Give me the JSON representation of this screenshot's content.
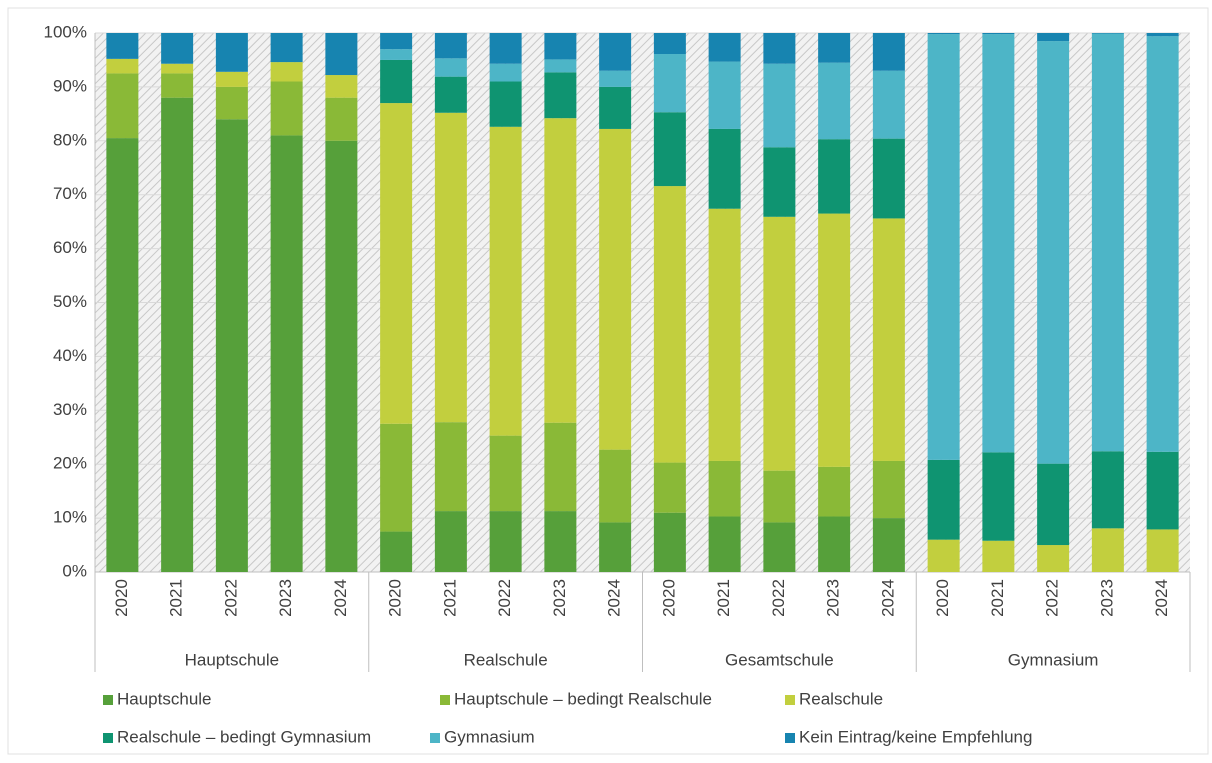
{
  "chart_data": {
    "type": "stacked_bar",
    "groups": [
      {
        "label": "Hauptschule",
        "categories": [
          "2020",
          "2021",
          "2022",
          "2023",
          "2024"
        ]
      },
      {
        "label": "Realschule",
        "categories": [
          "2020",
          "2021",
          "2022",
          "2023",
          "2024"
        ]
      },
      {
        "label": "Gesamtschule",
        "categories": [
          "2020",
          "2021",
          "2022",
          "2023",
          "2024"
        ]
      },
      {
        "label": "Gymnasium",
        "categories": [
          "2020",
          "2021",
          "2022",
          "2023",
          "2024"
        ]
      }
    ],
    "series": [
      {
        "name": "Hauptschule",
        "color": "#56a03a",
        "values": [
          80.5,
          88,
          84,
          81,
          80,
          7.5,
          11.3,
          11.3,
          11.3,
          9.2,
          11,
          10.3,
          9.2,
          10.3,
          10,
          0,
          0,
          0,
          0,
          0
        ]
      },
      {
        "name": "Hauptschule – bedingt Realschule",
        "color": "#8ab937",
        "values": [
          12,
          4.5,
          6,
          10,
          8,
          20,
          16.5,
          14,
          16.4,
          13.5,
          9.3,
          10.3,
          9.6,
          9.2,
          10.6,
          0,
          0,
          0,
          0,
          0
        ]
      },
      {
        "name": "Realschule",
        "color": "#c2cf3e",
        "values": [
          2.7,
          1.8,
          2.8,
          3.6,
          4.2,
          59.5,
          57.4,
          57.3,
          56.5,
          59.5,
          51.3,
          46.8,
          47.1,
          47,
          45,
          6,
          5.8,
          5,
          8.1,
          7.9
        ]
      },
      {
        "name": "Realschule – bedingt Gymnasium",
        "color": "#0f9471",
        "values": [
          0,
          0,
          0,
          0,
          0,
          8,
          6.7,
          8.4,
          8.5,
          7.8,
          13.7,
          14.8,
          12.9,
          13.8,
          14.8,
          14.8,
          16.4,
          15.1,
          14.3,
          14.4
        ]
      },
      {
        "name": "Gymnasium",
        "color": "#4db5c7",
        "values": [
          0,
          0,
          0,
          0,
          0,
          2,
          3.4,
          3.3,
          2.4,
          3,
          10.8,
          12.5,
          15.5,
          14.2,
          12.6,
          79,
          77.6,
          78.4,
          77.5,
          77.1
        ]
      },
      {
        "name": "Kein Eintrag/keine Empfehlung",
        "color": "#1784b0",
        "values": [
          4.8,
          5.7,
          7.2,
          5.4,
          7.8,
          3,
          4.7,
          5.7,
          4.9,
          7,
          3.9,
          5.3,
          5.7,
          5.5,
          7,
          0.2,
          0.2,
          1.5,
          0.1,
          0.6
        ]
      }
    ],
    "ylim": [
      0,
      100
    ],
    "yticks": [
      {
        "value": 0,
        "label": "0%"
      },
      {
        "value": 10,
        "label": "10%"
      },
      {
        "value": 20,
        "label": "20%"
      },
      {
        "value": 30,
        "label": "30%"
      },
      {
        "value": 40,
        "label": "40%"
      },
      {
        "value": 50,
        "label": "50%"
      },
      {
        "value": 60,
        "label": "60%"
      },
      {
        "value": 70,
        "label": "70%"
      },
      {
        "value": 80,
        "label": "80%"
      },
      {
        "value": 90,
        "label": "90%"
      },
      {
        "value": 100,
        "label": "100%"
      }
    ],
    "grid": true,
    "legend": "bottom"
  }
}
